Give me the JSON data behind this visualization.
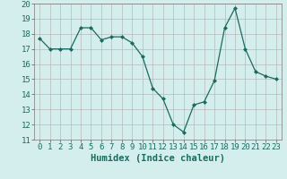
{
  "x": [
    0,
    1,
    2,
    3,
    4,
    5,
    6,
    7,
    8,
    9,
    10,
    11,
    12,
    13,
    14,
    15,
    16,
    17,
    18,
    19,
    20,
    21,
    22,
    23
  ],
  "y": [
    17.7,
    17.0,
    17.0,
    17.0,
    18.4,
    18.4,
    17.6,
    17.8,
    17.8,
    17.4,
    16.5,
    14.4,
    13.7,
    12.0,
    11.5,
    13.3,
    13.5,
    14.9,
    18.4,
    19.7,
    17.0,
    15.5,
    15.2,
    15.0
  ],
  "line_color": "#1a6b5e",
  "marker": "D",
  "marker_size": 2.0,
  "bg_color": "#d4eeee",
  "grid_color": "#b8b8b8",
  "xlabel": "Humidex (Indice chaleur)",
  "ylim": [
    11,
    20
  ],
  "xlim": [
    -0.5,
    23.5
  ],
  "yticks": [
    11,
    12,
    13,
    14,
    15,
    16,
    17,
    18,
    19,
    20
  ],
  "xticks": [
    0,
    1,
    2,
    3,
    4,
    5,
    6,
    7,
    8,
    9,
    10,
    11,
    12,
    13,
    14,
    15,
    16,
    17,
    18,
    19,
    20,
    21,
    22,
    23
  ],
  "tick_fontsize": 6.5,
  "xlabel_fontsize": 7.5
}
